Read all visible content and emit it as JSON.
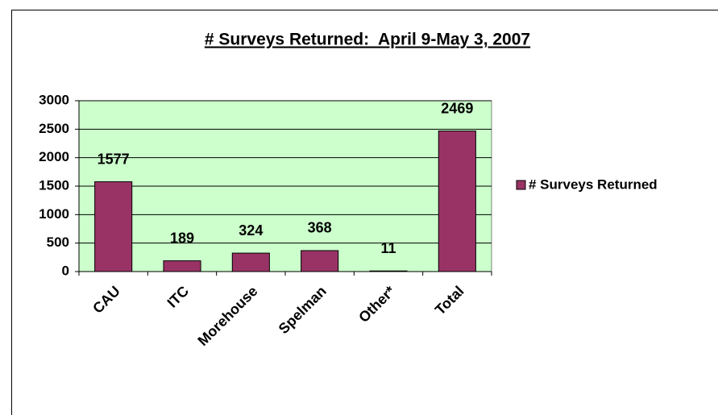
{
  "chart_data": {
    "type": "bar",
    "title": "# Surveys Returned:  April 9-May 3, 2007",
    "categories": [
      "CAU",
      "ITC",
      "Morehouse",
      "Spelman",
      "Other*",
      "Total"
    ],
    "series": [
      {
        "name": "# Surveys Returned",
        "color": "#993366",
        "values": [
          1577,
          189,
          324,
          368,
          11,
          2469
        ]
      }
    ],
    "ylim": [
      0,
      3000
    ],
    "yticks": [
      0,
      500,
      1000,
      1500,
      2000,
      2500,
      3000
    ],
    "grid": true,
    "legend": "right"
  }
}
